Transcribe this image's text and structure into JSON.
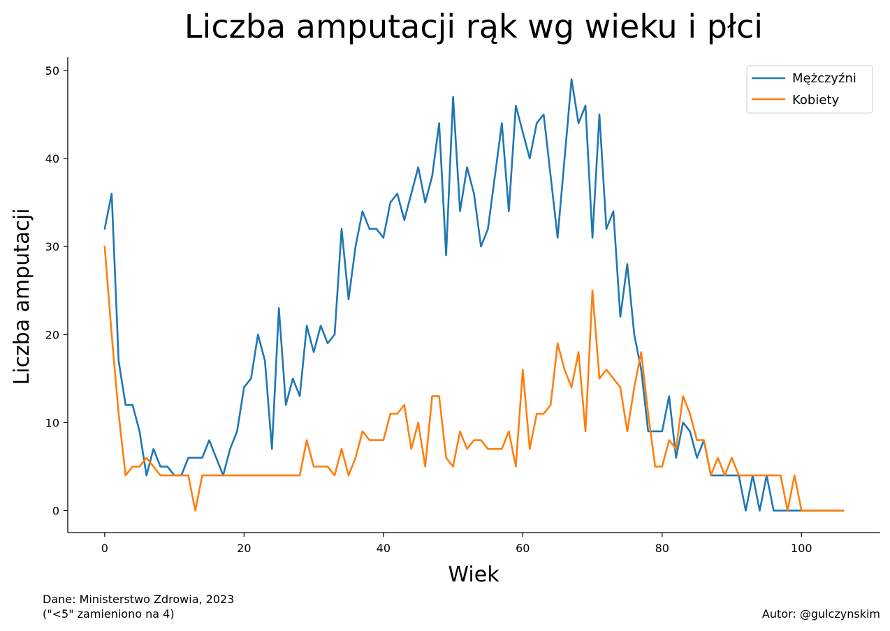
{
  "chart_data": {
    "type": "line",
    "title": "Liczba amputacji rąk wg wieku i płci",
    "xlabel": "Wiek",
    "ylabel": "Liczba amputacji",
    "xlim": [
      -5.3,
      111.3
    ],
    "ylim": [
      -2.5,
      51.5
    ],
    "xticks": [
      0,
      20,
      40,
      60,
      80,
      100
    ],
    "yticks": [
      0,
      10,
      20,
      30,
      40,
      50
    ],
    "grid": false,
    "legend_position": "top-right",
    "x": [
      0,
      1,
      2,
      3,
      4,
      5,
      6,
      7,
      8,
      9,
      10,
      11,
      12,
      13,
      14,
      15,
      16,
      17,
      18,
      19,
      20,
      21,
      22,
      23,
      24,
      25,
      26,
      27,
      28,
      29,
      30,
      31,
      32,
      33,
      34,
      35,
      36,
      37,
      38,
      39,
      40,
      41,
      42,
      43,
      44,
      45,
      46,
      47,
      48,
      49,
      50,
      51,
      52,
      53,
      54,
      55,
      56,
      57,
      58,
      59,
      60,
      61,
      62,
      63,
      64,
      65,
      66,
      67,
      68,
      69,
      70,
      71,
      72,
      73,
      74,
      75,
      76,
      77,
      78,
      79,
      80,
      81,
      82,
      83,
      84,
      85,
      86,
      87,
      88,
      89,
      90,
      91,
      92,
      93,
      94,
      95,
      96,
      97,
      98,
      99,
      100,
      101,
      102,
      103,
      104,
      105,
      106
    ],
    "series": [
      {
        "name": "Mężczyźni",
        "color": "#1f77b4",
        "values": [
          32,
          36,
          17,
          12,
          12,
          9,
          4,
          7,
          5,
          5,
          4,
          4,
          6,
          6,
          6,
          8,
          6,
          4,
          7,
          9,
          14,
          15,
          20,
          17,
          7,
          23,
          12,
          15,
          13,
          21,
          18,
          21,
          19,
          20,
          32,
          24,
          30,
          34,
          32,
          32,
          31,
          35,
          36,
          33,
          36,
          39,
          35,
          38,
          44,
          29,
          47,
          34,
          39,
          36,
          30,
          32,
          38,
          44,
          34,
          46,
          43,
          40,
          44,
          45,
          38,
          31,
          40,
          49,
          44,
          46,
          31,
          45,
          32,
          34,
          22,
          28,
          20,
          16,
          9,
          9,
          9,
          13,
          6,
          10,
          9,
          6,
          8,
          4,
          4,
          4,
          4,
          4,
          0,
          4,
          0,
          4,
          0,
          0,
          0,
          0,
          0,
          0,
          0,
          0,
          0,
          0,
          0
        ]
      },
      {
        "name": "Kobiety",
        "color": "#ff7f0e",
        "values": [
          30,
          20,
          11,
          4,
          5,
          5,
          6,
          5,
          4,
          4,
          4,
          4,
          4,
          0,
          4,
          4,
          4,
          4,
          4,
          4,
          4,
          4,
          4,
          4,
          4,
          4,
          4,
          4,
          4,
          8,
          5,
          5,
          5,
          4,
          7,
          4,
          6,
          9,
          8,
          8,
          8,
          11,
          11,
          12,
          7,
          10,
          5,
          13,
          13,
          6,
          5,
          9,
          7,
          8,
          8,
          7,
          7,
          7,
          9,
          5,
          16,
          7,
          11,
          11,
          12,
          19,
          16,
          14,
          18,
          9,
          25,
          15,
          16,
          15,
          14,
          9,
          14,
          18,
          11,
          5,
          5,
          8,
          7,
          13,
          11,
          8,
          8,
          4,
          6,
          4,
          6,
          4,
          4,
          4,
          4,
          4,
          4,
          4,
          0,
          4,
          0,
          0,
          0,
          0,
          0,
          0,
          0
        ]
      }
    ]
  },
  "footer": {
    "source_line1": "Dane: Ministerstwo Zdrowia, 2023",
    "source_line2": "(\"<5\" zamieniono na 4)",
    "author": "Autor: @gulczynskim"
  }
}
